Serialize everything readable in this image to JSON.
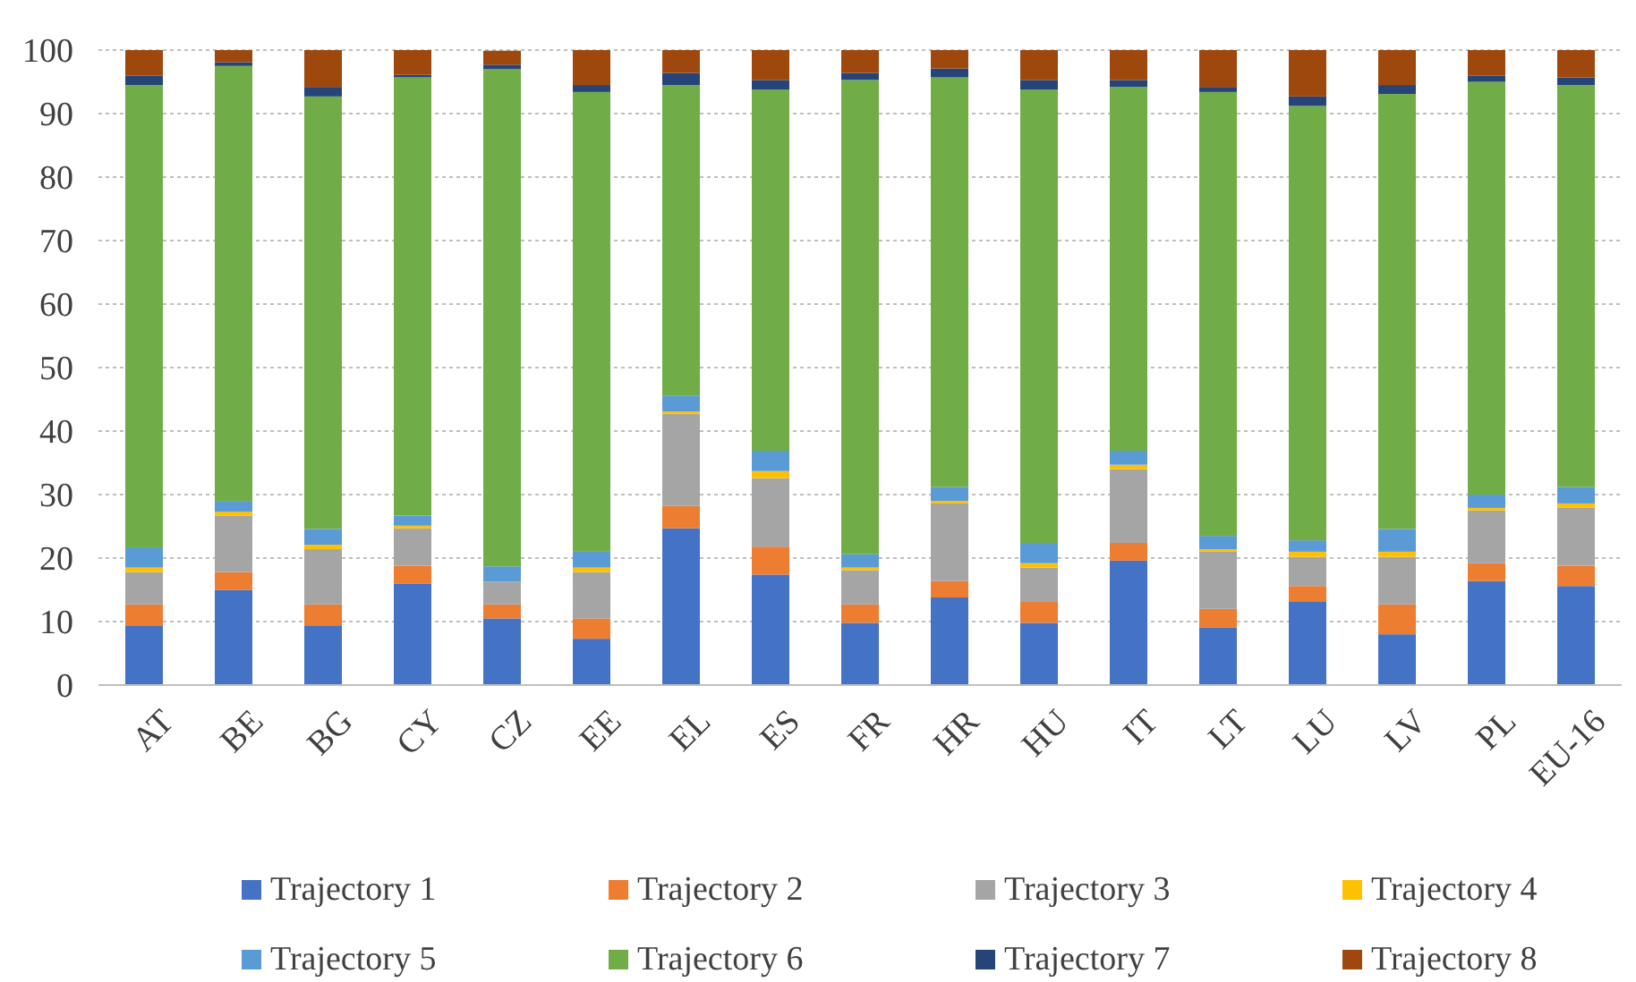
{
  "chart_data": {
    "type": "bar",
    "stacked": true,
    "categories": [
      "AT",
      "BE",
      "BG",
      "CY",
      "CZ",
      "EE",
      "EL",
      "ES",
      "FR",
      "HR",
      "HU",
      "IT",
      "LT",
      "LU",
      "LV",
      "PL",
      "EU-16"
    ],
    "ylim": [
      0,
      100
    ],
    "yticks": [
      0,
      10,
      20,
      30,
      40,
      50,
      60,
      70,
      80,
      90,
      100
    ],
    "grid": "y",
    "legend": "bottom",
    "series": [
      {
        "name": "Trajectory 1",
        "color": "#4472c4",
        "values": [
          9.4,
          15.0,
          9.4,
          16.0,
          10.5,
          7.3,
          24.7,
          17.4,
          9.8,
          13.8,
          9.8,
          19.6,
          9.1,
          13.1,
          8.0,
          16.4,
          15.6
        ]
      },
      {
        "name": "Trajectory 2",
        "color": "#ed7d31",
        "values": [
          3.3,
          2.8,
          3.3,
          2.8,
          2.2,
          3.2,
          3.5,
          4.4,
          2.9,
          2.6,
          3.3,
          2.8,
          2.9,
          2.5,
          4.7,
          2.8,
          3.2
        ]
      },
      {
        "name": "Trajectory 3",
        "color": "#a5a5a5",
        "values": [
          5.1,
          8.9,
          8.7,
          5.9,
          3.6,
          7.3,
          14.5,
          10.8,
          5.4,
          12.2,
          5.4,
          11.6,
          9.0,
          4.6,
          7.5,
          8.3,
          9.1
        ]
      },
      {
        "name": "Trajectory 4",
        "color": "#ffc000",
        "values": [
          0.7,
          0.6,
          0.7,
          0.4,
          null,
          0.7,
          0.4,
          1.1,
          0.4,
          0.4,
          0.7,
          0.7,
          0.4,
          0.8,
          0.8,
          0.4,
          0.7
        ]
      },
      {
        "name": "Trajectory 5",
        "color": "#5b9bd5",
        "values": [
          3.2,
          1.7,
          2.5,
          1.6,
          2.4,
          2.5,
          2.5,
          3.2,
          2.1,
          2.2,
          3.2,
          2.2,
          2.1,
          1.8,
          3.6,
          2.1,
          2.6
        ]
      },
      {
        "name": "Trajectory 6",
        "color": "#70ad47",
        "values": [
          72.8,
          68.5,
          68.1,
          69.0,
          78.3,
          72.4,
          48.9,
          56.9,
          74.7,
          64.5,
          71.4,
          57.3,
          69.9,
          68.4,
          68.5,
          65.0,
          63.3
        ]
      },
      {
        "name": "Trajectory 7",
        "color": "#264478",
        "values": [
          1.5,
          0.6,
          1.5,
          0.4,
          0.7,
          1.1,
          1.9,
          1.5,
          1.1,
          1.4,
          1.5,
          1.1,
          0.8,
          1.5,
          1.4,
          1.0,
          1.2
        ]
      },
      {
        "name": "Trajectory 8",
        "color": "#9e480e",
        "values": [
          4.0,
          1.9,
          5.8,
          3.9,
          2.2,
          5.5,
          3.6,
          4.7,
          3.6,
          2.9,
          4.7,
          4.7,
          5.8,
          7.3,
          5.5,
          4.0,
          4.3
        ]
      }
    ]
  }
}
